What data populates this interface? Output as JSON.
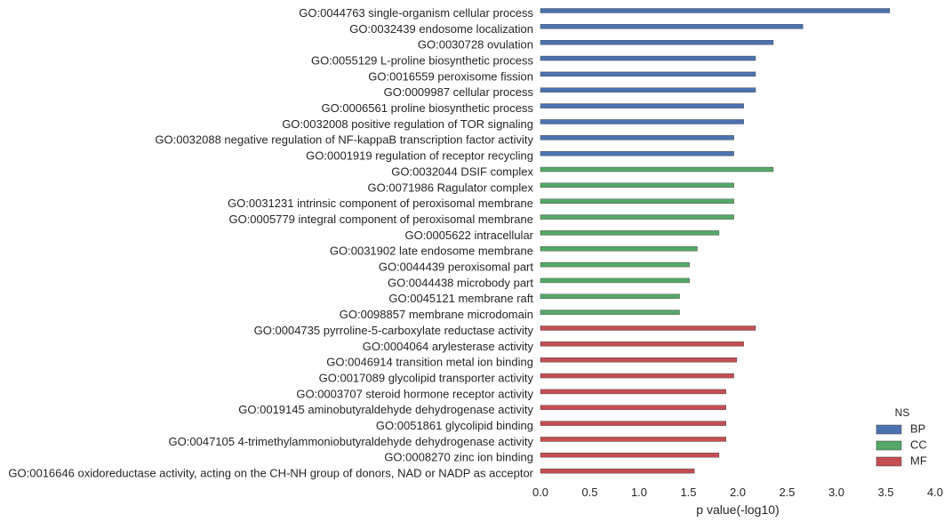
{
  "chart_data": {
    "type": "bar",
    "orientation": "horizontal",
    "xlabel": "p value(-log10)",
    "xlim": [
      0,
      4
    ],
    "xticks": [
      "0.0",
      "0.5",
      "1.0",
      "1.5",
      "2.0",
      "2.5",
      "3.0",
      "3.5",
      "4.0"
    ],
    "grid": false,
    "legend": {
      "title": "NS",
      "placement": "bottom-right",
      "entries": [
        {
          "name": "BP",
          "color": "#4c72b0"
        },
        {
          "name": "CC",
          "color": "#55a868"
        },
        {
          "name": "MF",
          "color": "#c44e52"
        }
      ]
    },
    "categories": [
      "GO:0044763 single-organism cellular process",
      "GO:0032439 endosome localization",
      "GO:0030728 ovulation",
      "GO:0055129 L-proline biosynthetic process",
      "GO:0016559 peroxisome fission",
      "GO:0009987 cellular process",
      "GO:0006561 proline biosynthetic process",
      "GO:0032008 positive regulation of TOR signaling",
      "GO:0032088 negative regulation of NF-kappaB transcription factor activity",
      "GO:0001919 regulation of receptor recycling",
      "GO:0032044 DSIF complex",
      "GO:0071986 Ragulator complex",
      "GO:0031231 intrinsic component of peroxisomal membrane",
      "GO:0005779 integral component of peroxisomal membrane",
      "GO:0005622 intracellular",
      "GO:0031902 late endosome membrane",
      "GO:0044439 peroxisomal part",
      "GO:0044438 microbody part",
      "GO:0045121 membrane raft",
      "GO:0098857 membrane microdomain",
      "GO:0004735 pyrroline-5-carboxylate reductase activity",
      "GO:0004064 arylesterase activity",
      "GO:0046914 transition metal ion binding",
      "GO:0017089 glycolipid transporter activity",
      "GO:0003707 steroid hormone receptor activity",
      "GO:0019145 aminobutyraldehyde dehydrogenase activity",
      "GO:0051861 glycolipid binding",
      "GO:0047105 4-trimethylammoniobutyraldehyde dehydrogenase activity",
      "GO:0008270 zinc ion binding",
      "GO:0016646 oxidoreductase activity, acting on the CH-NH group of donors, NAD or NADP as acceptor"
    ],
    "values": [
      3.54,
      2.66,
      2.36,
      2.18,
      2.18,
      2.18,
      2.06,
      2.06,
      1.96,
      1.96,
      2.36,
      1.96,
      1.96,
      1.96,
      1.81,
      1.59,
      1.51,
      1.51,
      1.41,
      1.41,
      2.18,
      2.06,
      1.99,
      1.96,
      1.88,
      1.88,
      1.88,
      1.88,
      1.81,
      1.56
    ],
    "groups": [
      "BP",
      "BP",
      "BP",
      "BP",
      "BP",
      "BP",
      "BP",
      "BP",
      "BP",
      "BP",
      "CC",
      "CC",
      "CC",
      "CC",
      "CC",
      "CC",
      "CC",
      "CC",
      "CC",
      "CC",
      "MF",
      "MF",
      "MF",
      "MF",
      "MF",
      "MF",
      "MF",
      "MF",
      "MF",
      "MF"
    ]
  }
}
